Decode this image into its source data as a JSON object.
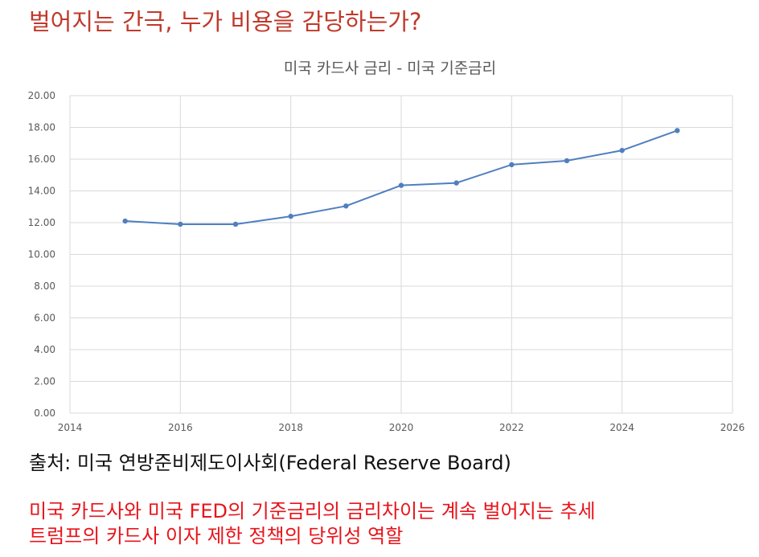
{
  "headline": "벌어지는 간극, 누가 비용을 감당하는가?",
  "source": "출처: 미국 연방준비제도이사회(Federal Reserve Board)",
  "notes": [
    "미국 카드사와 미국 FED의 기준금리의 금리차이는 계속 벌어지는 추세",
    "트럼프의 카드사 이자 제한 정책의 당위성 역할"
  ],
  "colors": {
    "headline": "#c0392b",
    "note": "#e8141b",
    "series": "#4f7fbf",
    "grid": "#d9d9d9"
  },
  "chart_data": {
    "type": "line",
    "title": "미국 카드사 금리 - 미국 기준금리",
    "xlabel": "",
    "ylabel": "",
    "xlim": [
      2014,
      2026
    ],
    "ylim": [
      0,
      20
    ],
    "x_ticks": [
      "2014",
      "2016",
      "2018",
      "2020",
      "2022",
      "2024",
      "2026"
    ],
    "y_ticks": [
      "0.00",
      "2.00",
      "4.00",
      "6.00",
      "8.00",
      "10.00",
      "12.00",
      "14.00",
      "16.00",
      "18.00",
      "20.00"
    ],
    "grid": true,
    "legend": "none",
    "series": [
      {
        "x": [
          2015,
          2016,
          2017,
          2018,
          2019,
          2020,
          2021,
          2022,
          2023,
          2024,
          2025
        ],
        "values": [
          12.1,
          11.9,
          11.9,
          12.4,
          13.05,
          14.35,
          14.5,
          15.65,
          15.9,
          16.55,
          17.8
        ]
      }
    ]
  }
}
